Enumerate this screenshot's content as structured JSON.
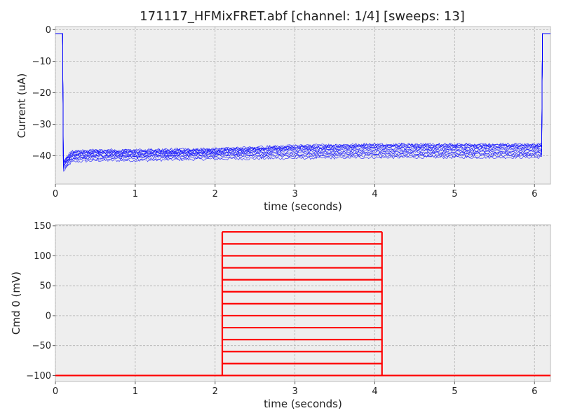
{
  "chart_data": [
    {
      "type": "line",
      "title": "171117_HFMixFRET.abf [channel: 1/4] [sweeps: 13]",
      "xlabel": "time (seconds)",
      "ylabel": "Current (uA)",
      "xlim": [
        0,
        6.2
      ],
      "ylim": [
        -49,
        1
      ],
      "xticks": [
        0,
        1,
        2,
        3,
        4,
        5,
        6
      ],
      "yticks": [
        0,
        -10,
        -20,
        -30,
        -40
      ],
      "ytick_labels": [
        "0",
        "−10",
        "−20",
        "−30",
        "−40"
      ],
      "grid": true,
      "color": "#0000ff",
      "sweep_count": 13,
      "holding_current": -1.2,
      "step_on": 0.09,
      "step_off": 6.1,
      "series": [
        {
          "x": [
            0.1,
            0.2,
            0.5,
            1.0,
            2.0,
            3.0,
            4.0,
            5.0,
            6.09
          ],
          "values": [
            -45.0,
            -42.0,
            -41.5,
            -41.5,
            -41.0,
            -40.8,
            -40.5,
            -40.5,
            -40.5
          ]
        },
        {
          "x": [
            0.1,
            0.2,
            0.5,
            1.0,
            2.0,
            3.0,
            4.0,
            5.0,
            6.09
          ],
          "values": [
            -44.5,
            -41.5,
            -41.0,
            -41.0,
            -40.5,
            -40.2,
            -40.0,
            -40.0,
            -40.0
          ]
        },
        {
          "x": [
            0.1,
            0.2,
            0.5,
            1.0,
            2.0,
            3.0,
            4.0,
            5.0,
            6.09
          ],
          "values": [
            -44.0,
            -41.0,
            -40.5,
            -40.5,
            -40.0,
            -39.8,
            -39.5,
            -39.5,
            -39.5
          ]
        },
        {
          "x": [
            0.1,
            0.2,
            0.5,
            1.0,
            2.0,
            3.0,
            4.0,
            5.0,
            6.09
          ],
          "values": [
            -44.0,
            -40.8,
            -40.2,
            -40.2,
            -39.8,
            -39.4,
            -39.2,
            -39.2,
            -39.2
          ]
        },
        {
          "x": [
            0.1,
            0.2,
            0.5,
            1.0,
            2.0,
            3.0,
            4.0,
            5.0,
            6.09
          ],
          "values": [
            -43.5,
            -40.5,
            -40.0,
            -40.0,
            -39.5,
            -39.0,
            -38.8,
            -38.8,
            -38.8
          ]
        },
        {
          "x": [
            0.1,
            0.2,
            0.5,
            1.0,
            2.0,
            3.0,
            4.0,
            5.0,
            6.09
          ],
          "values": [
            -43.5,
            -40.2,
            -39.8,
            -39.8,
            -39.2,
            -38.6,
            -38.4,
            -38.4,
            -38.4
          ]
        },
        {
          "x": [
            0.1,
            0.2,
            0.5,
            1.0,
            2.0,
            3.0,
            4.0,
            5.0,
            6.09
          ],
          "values": [
            -43.0,
            -40.0,
            -39.5,
            -39.5,
            -39.0,
            -38.2,
            -38.0,
            -38.0,
            -38.0
          ]
        },
        {
          "x": [
            0.1,
            0.2,
            0.5,
            1.0,
            2.0,
            3.0,
            4.0,
            5.0,
            6.09
          ],
          "values": [
            -43.0,
            -39.8,
            -39.2,
            -39.2,
            -38.8,
            -37.9,
            -37.6,
            -37.6,
            -37.6
          ]
        },
        {
          "x": [
            0.1,
            0.2,
            0.5,
            1.0,
            2.0,
            3.0,
            4.0,
            5.0,
            6.09
          ],
          "values": [
            -42.5,
            -39.5,
            -39.0,
            -39.0,
            -38.6,
            -37.6,
            -37.3,
            -37.3,
            -37.3
          ]
        },
        {
          "x": [
            0.1,
            0.2,
            0.5,
            1.0,
            2.0,
            3.0,
            4.0,
            5.0,
            6.09
          ],
          "values": [
            -42.5,
            -39.2,
            -38.8,
            -38.8,
            -38.4,
            -37.4,
            -37.0,
            -37.0,
            -37.0
          ]
        },
        {
          "x": [
            0.1,
            0.2,
            0.5,
            1.0,
            2.0,
            3.0,
            4.0,
            5.0,
            6.09
          ],
          "values": [
            -42.0,
            -39.0,
            -38.6,
            -38.6,
            -38.2,
            -37.2,
            -36.8,
            -36.8,
            -36.8
          ]
        },
        {
          "x": [
            0.1,
            0.2,
            0.5,
            1.0,
            2.0,
            3.0,
            4.0,
            5.0,
            6.09
          ],
          "values": [
            -42.0,
            -38.8,
            -38.4,
            -38.4,
            -38.0,
            -37.0,
            -36.6,
            -36.6,
            -36.6
          ]
        },
        {
          "x": [
            0.1,
            0.2,
            0.5,
            1.0,
            2.0,
            3.0,
            4.0,
            5.0,
            6.09
          ],
          "values": [
            -41.5,
            -38.6,
            -38.2,
            -38.2,
            -37.8,
            -36.8,
            -36.4,
            -36.4,
            -36.4
          ]
        }
      ]
    },
    {
      "type": "line",
      "title": "",
      "xlabel": "time (seconds)",
      "ylabel": "Cmd 0 (mV)",
      "xlim": [
        0,
        6.2
      ],
      "ylim": [
        -110,
        152
      ],
      "xticks": [
        0,
        1,
        2,
        3,
        4,
        5,
        6
      ],
      "yticks": [
        150,
        100,
        50,
        0,
        -50,
        -100
      ],
      "ytick_labels": [
        "150",
        "100",
        "50",
        "0",
        "−50",
        "−100"
      ],
      "grid": true,
      "color": "#ff0000",
      "holding_mv": -100,
      "step_on": 2.09,
      "step_off": 4.09,
      "step_levels": [
        -80,
        -60,
        -40,
        -20,
        0,
        20,
        40,
        60,
        80,
        100,
        120,
        140
      ]
    }
  ]
}
